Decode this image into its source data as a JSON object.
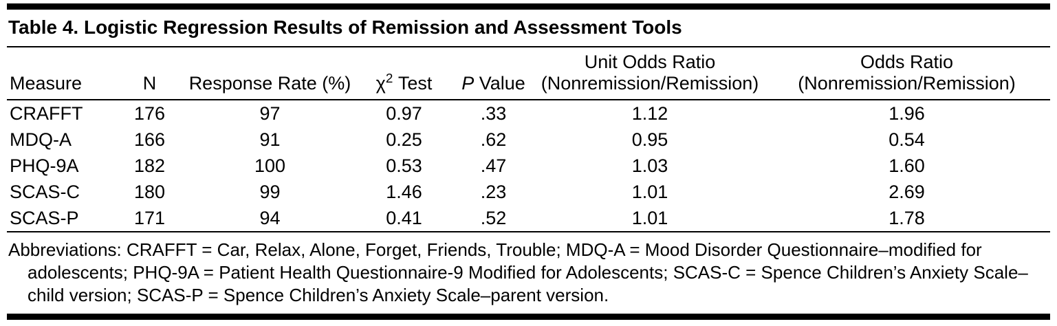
{
  "title": "Table 4. Logistic Regression Results of Remission and Assessment Tools",
  "table": {
    "header": {
      "measure": "Measure",
      "n": "N",
      "response_rate": "Response Rate (%)",
      "chi_symbol": "χ",
      "chi_sup": "2",
      "chi_rest": " Test",
      "p_italic": "P",
      "p_rest": " Value",
      "unit_odds_line1": "Unit Odds Ratio",
      "unit_odds_line2": "(Nonremission/Remission)",
      "odds_line1": "Odds Ratio",
      "odds_line2": "(Nonremission/Remission)"
    },
    "rows": [
      {
        "measure": "CRAFFT",
        "n": "176",
        "response_rate": "97",
        "chi_test": "0.97",
        "p_value": ".33",
        "unit_odds_ratio": "1.12",
        "odds_ratio": "1.96"
      },
      {
        "measure": "MDQ-A",
        "n": "166",
        "response_rate": "91",
        "chi_test": "0.25",
        "p_value": ".62",
        "unit_odds_ratio": "0.95",
        "odds_ratio": "0.54"
      },
      {
        "measure": "PHQ-9A",
        "n": "182",
        "response_rate": "100",
        "chi_test": "0.53",
        "p_value": ".47",
        "unit_odds_ratio": "1.03",
        "odds_ratio": "1.60"
      },
      {
        "measure": "SCAS-C",
        "n": "180",
        "response_rate": "99",
        "chi_test": "1.46",
        "p_value": ".23",
        "unit_odds_ratio": "1.01",
        "odds_ratio": "2.69"
      },
      {
        "measure": "SCAS-P",
        "n": "171",
        "response_rate": "94",
        "chi_test": "0.41",
        "p_value": ".52",
        "unit_odds_ratio": "1.01",
        "odds_ratio": "1.78"
      }
    ]
  },
  "footnote": "Abbreviations: CRAFFT = Car, Relax, Alone, Forget, Friends, Trouble; MDQ-A = Mood Disorder Questionnaire–modified for adolescents; PHQ-9A = Patient Health Questionnaire-9 Modified for Adolescents; SCAS-C = Spence Children’s Anxiety Scale–child version; SCAS-P = Spence Children’s Anxiety Scale–parent version.",
  "colors": {
    "text": "#000000",
    "background": "#ffffff",
    "rule": "#000000"
  }
}
